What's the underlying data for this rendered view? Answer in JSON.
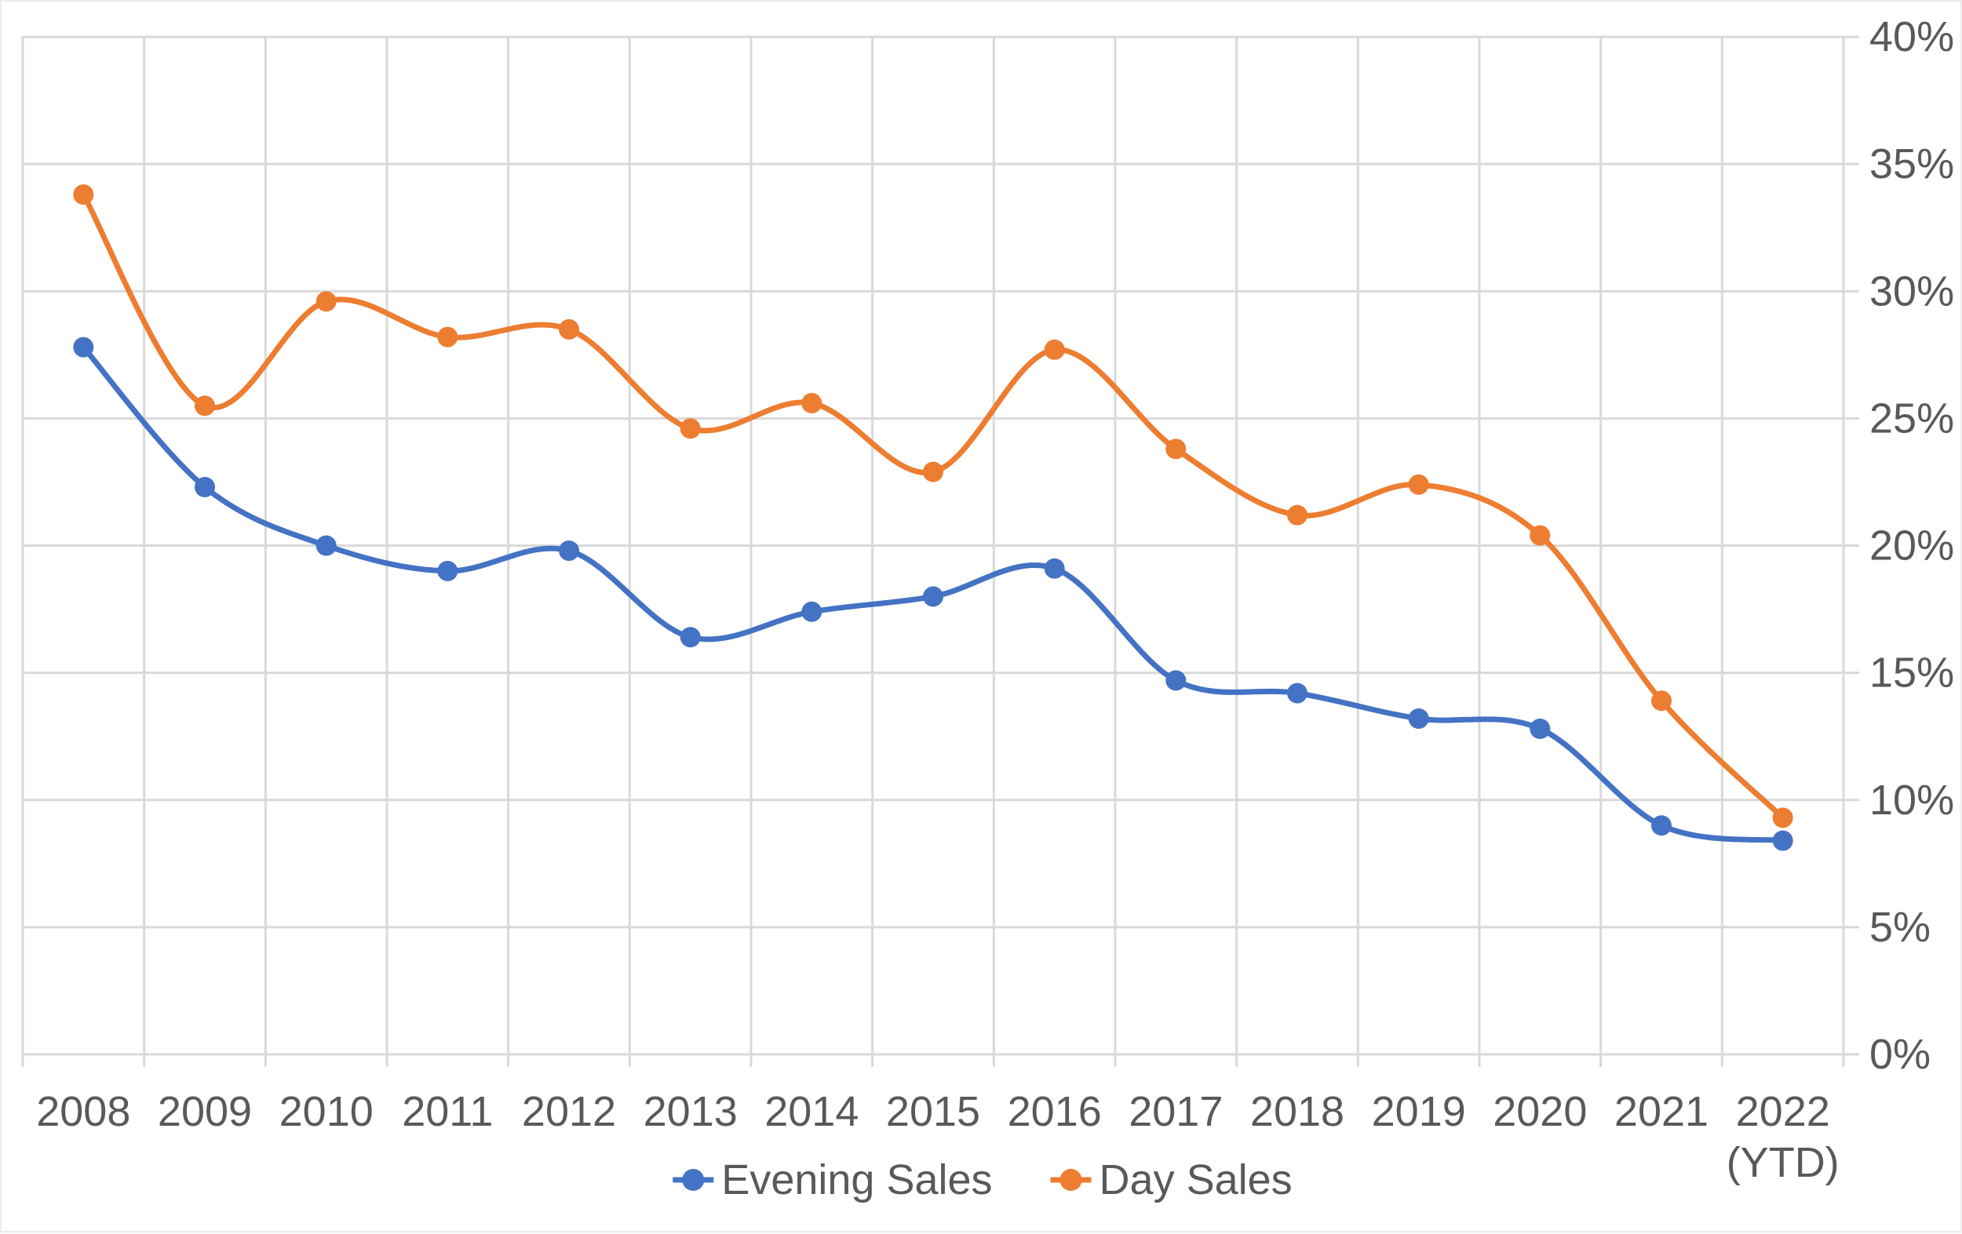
{
  "chart_data": {
    "type": "line",
    "title": "",
    "xlabel": "",
    "ylabel": "",
    "categories": [
      "2008",
      "2009",
      "2010",
      "2011",
      "2012",
      "2013",
      "2014",
      "2015",
      "2016",
      "2017",
      "2018",
      "2019",
      "2020",
      "2021",
      "2022"
    ],
    "last_category_suffix": "(YTD)",
    "series": [
      {
        "name": "Evening Sales",
        "color": "#4472C4",
        "values": [
          27.8,
          22.3,
          20.0,
          19.0,
          19.8,
          16.4,
          17.4,
          18.0,
          19.1,
          14.7,
          14.2,
          13.2,
          12.8,
          9.0,
          8.4
        ]
      },
      {
        "name": "Day Sales",
        "color": "#ED7D31",
        "values": [
          33.8,
          25.5,
          29.6,
          28.2,
          28.5,
          24.6,
          25.6,
          22.9,
          27.7,
          23.8,
          21.2,
          22.4,
          20.4,
          13.9,
          9.3
        ]
      }
    ],
    "ylim": [
      0,
      40
    ],
    "y_tick_step": 5,
    "y_tick_labels": [
      "0%",
      "5%",
      "10%",
      "15%",
      "20%",
      "25%",
      "30%",
      "35%",
      "40%"
    ],
    "y_axis_side": "right",
    "grid": true,
    "smooth_lines": true,
    "markers": "circle",
    "legend_position": "bottom"
  },
  "style": {
    "gridline_color": "#D9D9D9",
    "axis_text_color": "#595959",
    "background": "#FFFFFF"
  }
}
